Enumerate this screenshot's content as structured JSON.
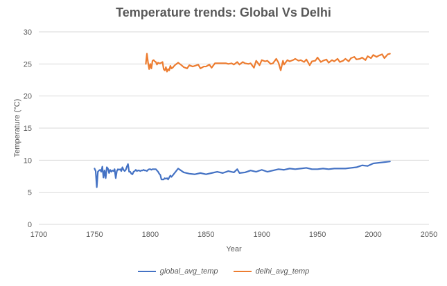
{
  "chart_data": {
    "type": "line",
    "title": "Temperature trends: Global Vs Delhi",
    "xlabel": "Year",
    "ylabel": "Temperature (°C)",
    "xlim": [
      1700,
      2050
    ],
    "ylim": [
      0,
      30
    ],
    "x_ticks": [
      1700,
      1750,
      1800,
      1850,
      1900,
      1950,
      2000,
      2050
    ],
    "y_ticks": [
      0,
      5,
      10,
      15,
      20,
      25,
      30
    ],
    "grid": "horizontal",
    "legend_position": "bottom",
    "series": [
      {
        "name": "global_avg_temp",
        "color": "#4472C4",
        "x": [
          1750,
          1751,
          1752,
          1753,
          1754,
          1755,
          1756,
          1757,
          1758,
          1759,
          1760,
          1761,
          1762,
          1763,
          1764,
          1765,
          1766,
          1767,
          1768,
          1769,
          1770,
          1771,
          1772,
          1773,
          1774,
          1775,
          1776,
          1777,
          1778,
          1779,
          1780,
          1781,
          1782,
          1783,
          1784,
          1785,
          1786,
          1787,
          1788,
          1789,
          1790,
          1791,
          1792,
          1793,
          1794,
          1795,
          1796,
          1797,
          1798,
          1799,
          1800,
          1801,
          1802,
          1803,
          1804,
          1805,
          1806,
          1807,
          1808,
          1809,
          1810,
          1811,
          1812,
          1813,
          1814,
          1815,
          1816,
          1817,
          1818,
          1819,
          1820,
          1825,
          1830,
          1835,
          1840,
          1845,
          1850,
          1855,
          1860,
          1865,
          1870,
          1875,
          1878,
          1880,
          1885,
          1890,
          1895,
          1900,
          1905,
          1910,
          1915,
          1920,
          1925,
          1930,
          1935,
          1940,
          1945,
          1950,
          1955,
          1960,
          1965,
          1970,
          1975,
          1980,
          1985,
          1990,
          1995,
          2000,
          2005,
          2010,
          2015
        ],
        "values": [
          8.7,
          8.3,
          5.8,
          8.2,
          8.4,
          8.5,
          8.2,
          9.0,
          7.3,
          8.4,
          7.2,
          8.9,
          8.7,
          8.0,
          8.5,
          8.2,
          8.4,
          8.3,
          8.6,
          7.2,
          8.3,
          8.6,
          8.5,
          8.6,
          8.3,
          8.9,
          8.5,
          8.3,
          8.5,
          9.0,
          9.4,
          8.2,
          8.2,
          7.9,
          7.8,
          8.2,
          8.3,
          8.5,
          8.3,
          8.4,
          8.4,
          8.3,
          8.4,
          8.4,
          8.5,
          8.4,
          8.4,
          8.3,
          8.5,
          8.6,
          8.6,
          8.5,
          8.6,
          8.6,
          8.6,
          8.6,
          8.4,
          8.2,
          7.9,
          7.7,
          7.0,
          7.0,
          7.0,
          7.2,
          7.1,
          7.2,
          7.0,
          7.3,
          7.6,
          7.4,
          7.6,
          8.7,
          8.1,
          7.9,
          7.8,
          8.0,
          7.8,
          8.0,
          8.2,
          8.0,
          8.3,
          8.1,
          8.6,
          8.0,
          8.1,
          8.4,
          8.2,
          8.5,
          8.2,
          8.4,
          8.6,
          8.5,
          8.7,
          8.6,
          8.7,
          8.8,
          8.6,
          8.6,
          8.7,
          8.6,
          8.7,
          8.7,
          8.7,
          8.8,
          8.9,
          9.2,
          9.1,
          9.5,
          9.6,
          9.7,
          9.8
        ]
      },
      {
        "name": "delhi_avg_temp",
        "color": "#ED7D31",
        "x": [
          1796,
          1797,
          1798,
          1799,
          1800,
          1801,
          1802,
          1803,
          1804,
          1805,
          1806,
          1807,
          1808,
          1809,
          1810,
          1811,
          1812,
          1813,
          1814,
          1815,
          1816,
          1817,
          1818,
          1819,
          1820,
          1822,
          1825,
          1828,
          1830,
          1833,
          1835,
          1838,
          1840,
          1843,
          1845,
          1848,
          1850,
          1853,
          1855,
          1858,
          1860,
          1863,
          1865,
          1868,
          1870,
          1873,
          1875,
          1878,
          1880,
          1883,
          1885,
          1888,
          1890,
          1893,
          1895,
          1898,
          1900,
          1903,
          1905,
          1908,
          1910,
          1913,
          1915,
          1917,
          1919,
          1920,
          1923,
          1925,
          1928,
          1930,
          1933,
          1935,
          1938,
          1940,
          1943,
          1945,
          1948,
          1950,
          1953,
          1955,
          1958,
          1960,
          1963,
          1965,
          1968,
          1970,
          1973,
          1975,
          1978,
          1980,
          1983,
          1985,
          1988,
          1990,
          1993,
          1995,
          1998,
          2000,
          2003,
          2005,
          2008,
          2010,
          2013,
          2015
        ],
        "values": [
          25.0,
          26.6,
          25.2,
          24.2,
          25.0,
          24.3,
          25.5,
          25.6,
          25.4,
          25.3,
          24.9,
          25.2,
          25.1,
          25.1,
          25.2,
          25.3,
          24.2,
          24.0,
          24.5,
          23.8,
          24.2,
          24.0,
          24.7,
          24.3,
          24.4,
          24.8,
          25.2,
          24.8,
          24.5,
          24.3,
          24.8,
          24.6,
          24.7,
          24.9,
          24.3,
          24.6,
          24.6,
          24.9,
          24.4,
          25.1,
          25.1,
          25.1,
          25.1,
          25.1,
          25.0,
          25.1,
          24.9,
          25.3,
          24.9,
          25.3,
          25.1,
          25.0,
          25.1,
          24.4,
          25.5,
          24.8,
          25.6,
          25.4,
          25.5,
          25.0,
          25.1,
          25.8,
          25.2,
          24.0,
          25.5,
          24.9,
          25.6,
          25.4,
          25.6,
          25.8,
          25.5,
          25.6,
          25.3,
          25.7,
          24.8,
          25.4,
          25.5,
          26.0,
          25.3,
          25.5,
          25.7,
          25.2,
          25.6,
          25.4,
          25.8,
          25.3,
          25.5,
          25.8,
          25.4,
          25.9,
          26.1,
          25.7,
          25.8,
          26.0,
          25.6,
          26.2,
          25.9,
          26.4,
          26.1,
          26.3,
          26.5,
          25.9,
          26.5,
          26.6
        ]
      }
    ]
  }
}
